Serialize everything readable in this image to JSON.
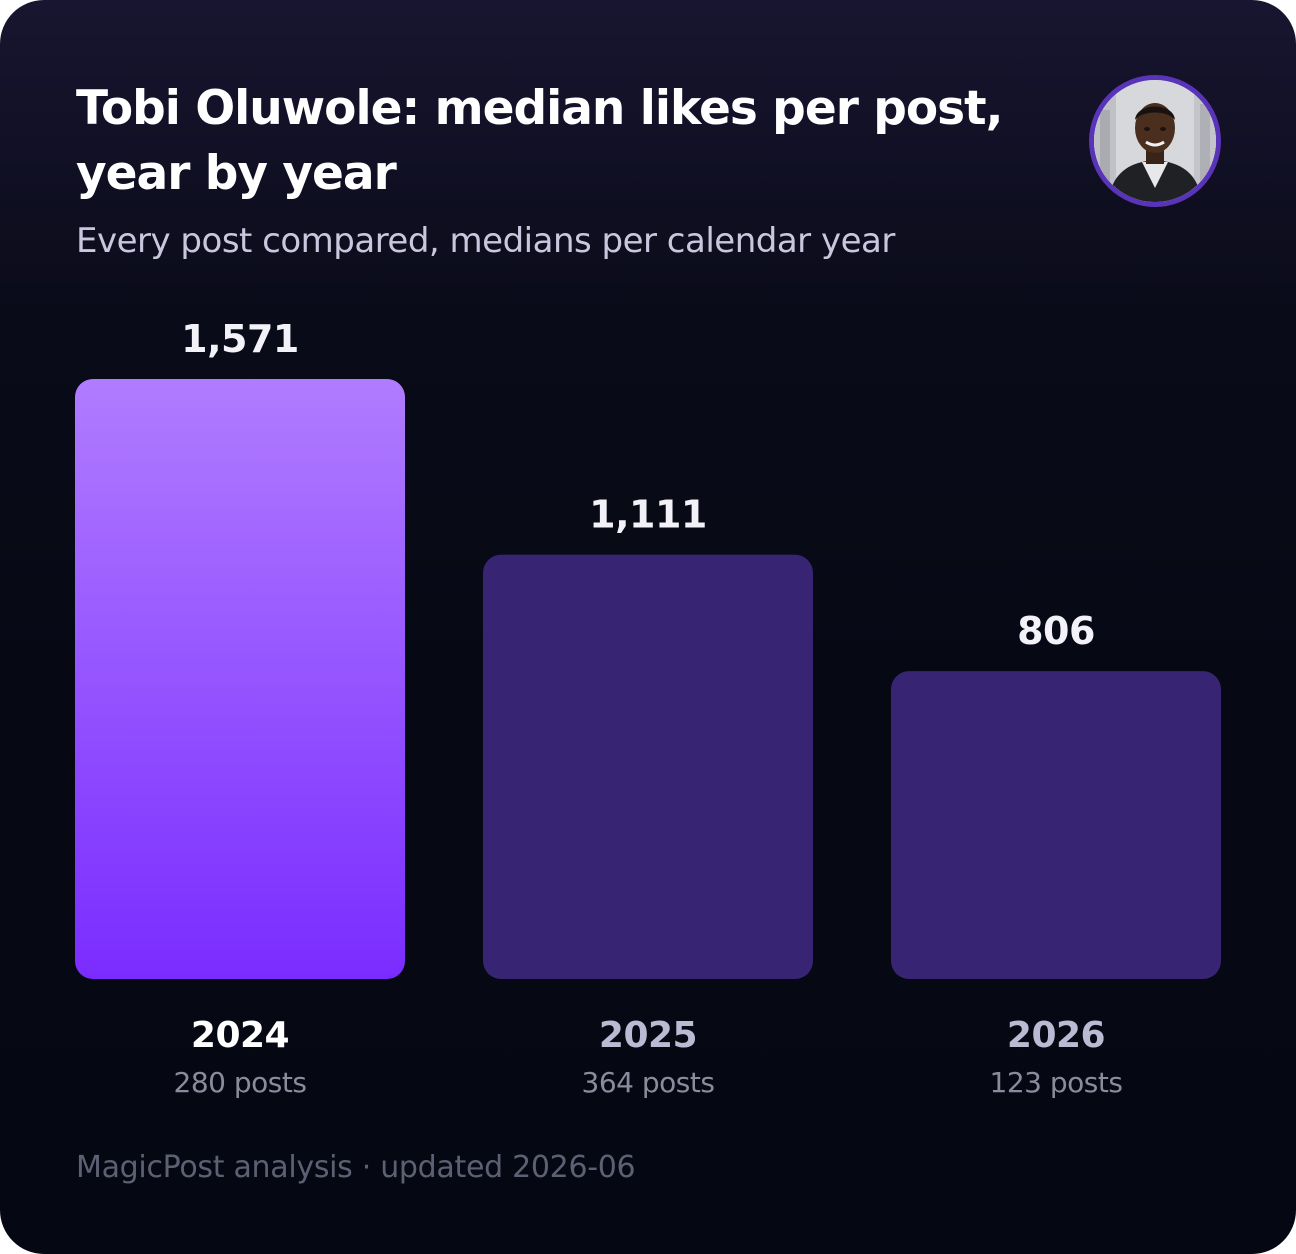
{
  "header": {
    "title": "Tobi Oluwole: median likes per post, year by year",
    "subtitle": "Every post compared, medians per calendar year"
  },
  "footer": {
    "text": "MagicPost analysis · updated 2026-06"
  },
  "colors": {
    "highlight_top": "#b07cff",
    "highlight_bottom": "#7a2cff",
    "bar_muted": "#372574",
    "value_label": "#f2f2f8",
    "year_highlight": "#ffffff",
    "year_muted": "#bcbad3",
    "posts_label": "#8a8b9c"
  },
  "chart_data": {
    "type": "bar",
    "categories": [
      "2024",
      "2025",
      "2026"
    ],
    "values": [
      1571,
      1111,
      806
    ],
    "value_labels": [
      "1,571",
      "1,111",
      "806"
    ],
    "post_counts": [
      "280 posts",
      "364 posts",
      "123 posts"
    ],
    "highlight_index": 0,
    "ylim": [
      0,
      1571
    ],
    "grid": false,
    "legend": "none"
  }
}
